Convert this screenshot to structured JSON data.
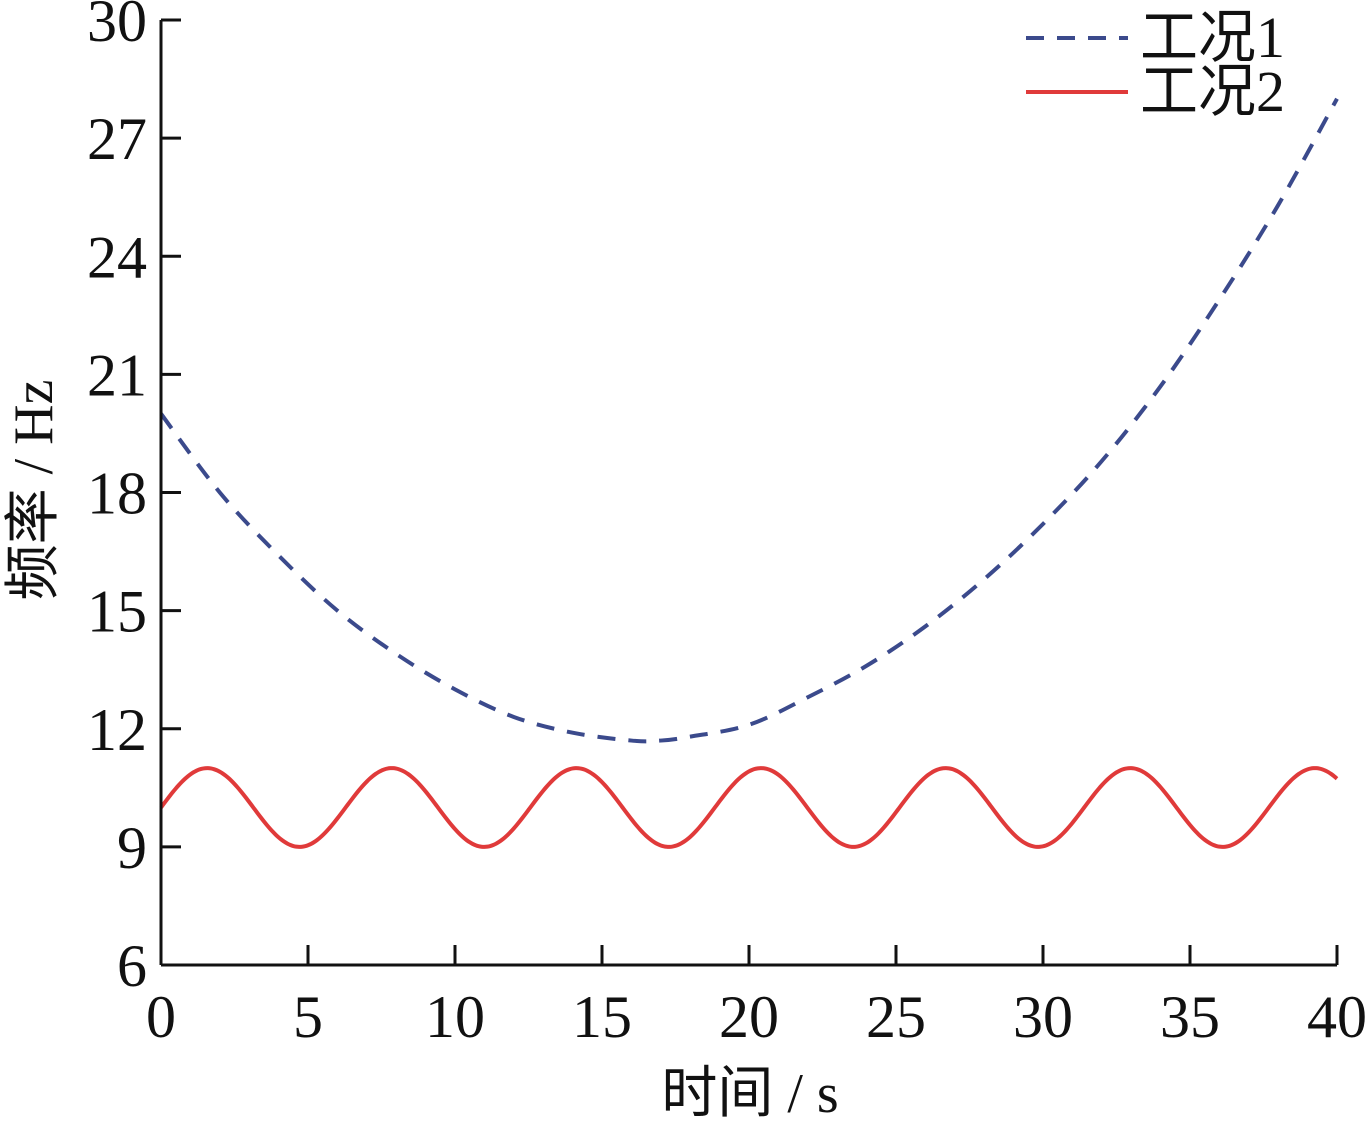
{
  "chart_data": {
    "type": "line",
    "title": "",
    "xlabel": "时间 / s",
    "ylabel": "频率 / Hz",
    "xlim": [
      0,
      40
    ],
    "ylim": [
      6,
      30
    ],
    "xticks": [
      0,
      5,
      10,
      15,
      20,
      25,
      30,
      35,
      40
    ],
    "yticks": [
      6,
      9,
      12,
      15,
      18,
      21,
      24,
      27,
      30
    ],
    "grid": false,
    "legend_position": "top-right",
    "series": [
      {
        "name": "工况1",
        "style": "dashed",
        "color": "#3b4a8c",
        "x": [
          0,
          2,
          4,
          6,
          8,
          10,
          12,
          14,
          16,
          17,
          18,
          20,
          22,
          24,
          26,
          28,
          30,
          32,
          34,
          36,
          38,
          40
        ],
        "y": [
          20.0,
          18.0,
          16.4,
          15.0,
          13.9,
          13.0,
          12.3,
          11.9,
          11.7,
          11.7,
          11.8,
          12.1,
          12.8,
          13.6,
          14.6,
          15.8,
          17.2,
          18.8,
          20.7,
          22.9,
          25.3,
          28.0
        ]
      },
      {
        "name": "工况2",
        "style": "solid",
        "color": "#e03a3a",
        "function": "10 + sin(2*pi*t/6.28)",
        "amplitude": 1.0,
        "offset": 10.0,
        "period": 6.28,
        "x_range": [
          0,
          40
        ],
        "y_max": 11.0,
        "y_min": 9.0
      }
    ]
  }
}
